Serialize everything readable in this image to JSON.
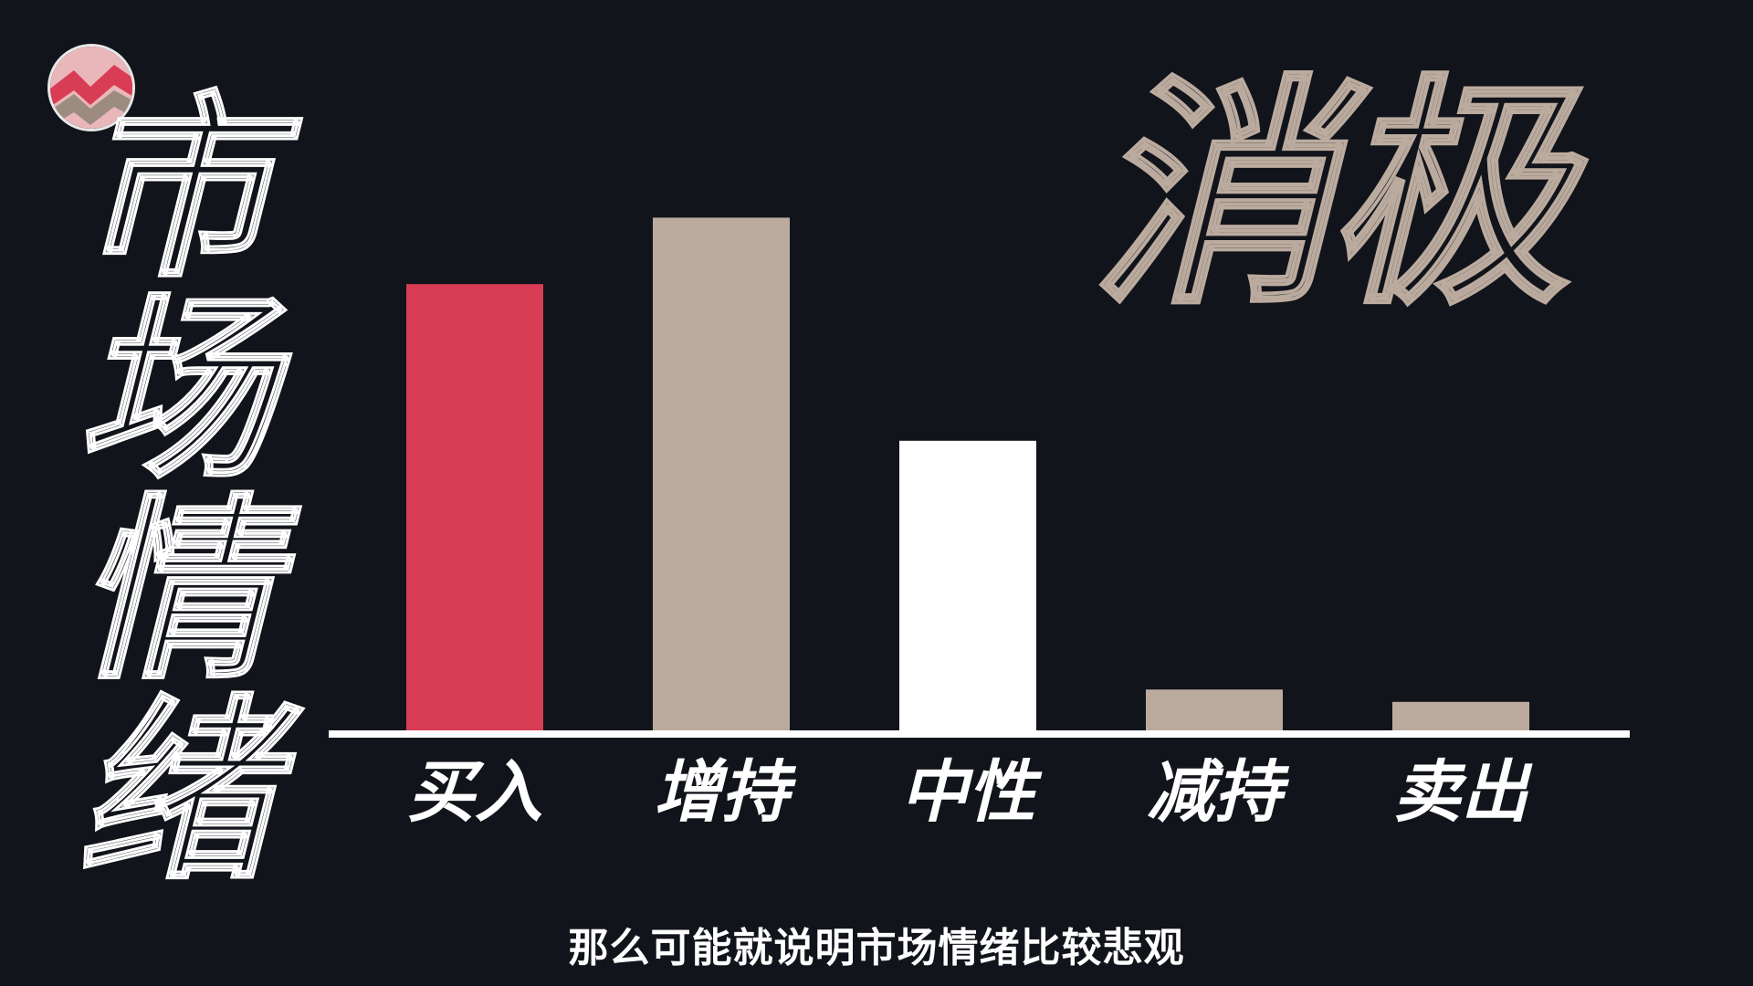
{
  "vertical_title": [
    "市",
    "场",
    "情",
    "绪"
  ],
  "corner_word": "消极",
  "subtitle": "那么可能就说明市场情绪比较悲观",
  "colors": {
    "background": "#12141b",
    "red": "#d83d55",
    "beige": "#bbab9f",
    "white": "#ffffff"
  },
  "logo": {
    "icon": "zigzag-logo-icon"
  },
  "chart_data": {
    "type": "bar",
    "categories": [
      "买入",
      "增持",
      "中性",
      "减持",
      "卖出"
    ],
    "values": [
      47,
      54,
      30.5,
      4.3,
      3
    ],
    "bar_colors": [
      "#d83d55",
      "#bbab9f",
      "#ffffff",
      "#bbab9f",
      "#bbab9f"
    ],
    "ylim": [
      0,
      60
    ],
    "grid": false,
    "title": "",
    "xlabel": "",
    "ylabel": ""
  }
}
